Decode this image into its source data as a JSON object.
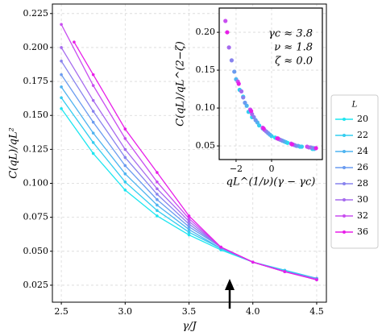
{
  "chart_data": [
    {
      "type": "line",
      "xlabel": "γ/J",
      "ylabel": "C(qL)/qL²",
      "xlim": [
        2.43,
        4.576
      ],
      "ylim": [
        0.0125,
        0.232
      ],
      "xticks": [
        2.5,
        {
          "value": 3.0,
          "label": "3.0"
        },
        3.5,
        {
          "value": 4.0,
          "label": "4.0"
        },
        4.5
      ],
      "yticks": [
        0.025,
        {
          "value": 0.05,
          "label": "0.050"
        },
        0.075,
        {
          "value": 0.1,
          "label": "0.100"
        },
        0.125,
        {
          "value": 0.15,
          "label": "0.150"
        },
        0.175,
        {
          "value": 0.2,
          "label": "0.200"
        },
        0.225
      ],
      "grid": true,
      "legend_title": "L",
      "legend": "right",
      "series": [
        {
          "name": "20",
          "color": "#1ee6f0",
          "x": [
            2.5,
            2.75,
            3.0,
            3.25,
            3.5,
            3.75,
            4.0,
            4.25,
            4.5
          ],
          "values": [
            0.155,
            0.122,
            0.095,
            0.076,
            0.062,
            0.051,
            0.042,
            0.036,
            0.03
          ]
        },
        {
          "name": "22",
          "color": "#34cdf0",
          "x": [
            2.5,
            2.75,
            3.0,
            3.25,
            3.5,
            3.75,
            4.0,
            4.25,
            4.5
          ],
          "values": [
            0.163,
            0.13,
            0.101,
            0.08,
            0.064,
            0.052,
            0.042,
            0.036,
            0.03
          ]
        },
        {
          "name": "24",
          "color": "#4fb3f0",
          "x": [
            2.5,
            2.75,
            3.0,
            3.25,
            3.5,
            3.75,
            4.0,
            4.25,
            4.5
          ],
          "values": [
            0.171,
            0.137,
            0.107,
            0.084,
            0.066,
            0.052,
            0.042,
            0.035,
            0.03
          ]
        },
        {
          "name": "26",
          "color": "#6a9bf0",
          "x": [
            2.5,
            2.75,
            3.0,
            3.25,
            3.5,
            3.75,
            4.0,
            4.25,
            4.5
          ],
          "values": [
            0.18,
            0.145,
            0.113,
            0.088,
            0.068,
            0.053,
            0.042,
            0.035,
            0.03
          ]
        },
        {
          "name": "28",
          "color": "#8883ee",
          "x": [
            2.5,
            2.75,
            3.0,
            3.25,
            3.5,
            3.75,
            4.0,
            4.25,
            4.5
          ],
          "values": [
            0.19,
            0.153,
            0.119,
            0.092,
            0.07,
            0.053,
            0.042,
            0.035,
            0.029
          ]
        },
        {
          "name": "30",
          "color": "#a66aee",
          "x": [
            2.5,
            2.75,
            3.0,
            3.25,
            3.5,
            3.75,
            4.0,
            4.25,
            4.5
          ],
          "values": [
            0.2,
            0.161,
            0.125,
            0.096,
            0.072,
            0.053,
            0.042,
            0.035,
            0.029
          ]
        },
        {
          "name": "32",
          "color": "#c84ef0",
          "x": [
            2.5,
            2.75,
            3.0,
            3.25,
            3.5,
            3.75,
            4.0,
            4.25,
            4.5
          ],
          "values": [
            0.217,
            0.172,
            0.133,
            0.101,
            0.074,
            0.053,
            0.042,
            0.035,
            0.029
          ]
        },
        {
          "name": "36",
          "color": "#e81ee8",
          "x": [
            2.6,
            2.75,
            3.0,
            3.25,
            3.5,
            3.75,
            4.0,
            4.25,
            4.5
          ],
          "values": [
            0.204,
            0.18,
            0.14,
            0.108,
            0.076,
            0.053,
            0.042,
            0.035,
            0.029
          ]
        }
      ]
    },
    {
      "type": "scatter",
      "xlabel": "qL^(1/ν)(γ − γc)",
      "ylabel": "C(qL)/qL^(2−ζ)",
      "xlim": [
        -2.95,
        2.86
      ],
      "ylim": [
        0.032,
        0.232
      ],
      "xticks": [
        {
          "value": -2,
          "label": "−2"
        },
        0
      ],
      "yticks": [
        {
          "value": 0.05,
          "label": "0.05"
        },
        {
          "value": 0.1,
          "label": "0.10"
        },
        {
          "value": 0.15,
          "label": "0.15"
        },
        {
          "value": 0.2,
          "label": "0.20"
        }
      ],
      "grid": true,
      "annotations": [
        "γc ≈ 3.8",
        "ν ≈ 1.8",
        "ζ ≈ 0.0"
      ],
      "series": [
        {
          "color": "#1ee6f0",
          "x": [
            -1.6,
            -1.1,
            -0.5,
            0.2,
            0.9,
            1.6,
            2.3
          ],
          "values": [
            0.115,
            0.088,
            0.073,
            0.061,
            0.054,
            0.049,
            0.046
          ]
        },
        {
          "color": "#34cdf0",
          "x": [
            -1.8,
            -1.3,
            -0.7,
            0.0,
            0.8,
            1.7,
            2.4
          ],
          "values": [
            0.124,
            0.095,
            0.077,
            0.063,
            0.055,
            0.049,
            0.046
          ]
        },
        {
          "color": "#4fb3f0",
          "x": [
            -2.0,
            -1.4,
            -0.8,
            -0.1,
            0.7,
            1.5,
            2.4
          ],
          "values": [
            0.138,
            0.103,
            0.081,
            0.065,
            0.056,
            0.05,
            0.047
          ]
        },
        {
          "color": "#6a9bf0",
          "x": [
            -2.1,
            -1.5,
            -0.9,
            -0.2,
            0.6,
            1.4,
            2.3
          ],
          "values": [
            0.148,
            0.107,
            0.084,
            0.067,
            0.057,
            0.05,
            0.047
          ]
        },
        {
          "color": "#8883ee",
          "x": [
            -2.25,
            -1.6,
            -1.0,
            -0.3,
            0.5,
            1.3,
            2.2
          ],
          "values": [
            0.163,
            0.114,
            0.088,
            0.069,
            0.058,
            0.051,
            0.048
          ]
        },
        {
          "color": "#a66aee",
          "x": [
            -2.4,
            -1.7,
            -1.1,
            -0.4,
            0.4,
            1.2,
            2.1
          ],
          "values": [
            0.18,
            0.122,
            0.092,
            0.071,
            0.059,
            0.052,
            0.048
          ]
        },
        {
          "color": "#c84ef0",
          "x": [
            -2.6,
            -1.9,
            -1.2,
            -0.5,
            0.3,
            1.1,
            2.0
          ],
          "values": [
            0.215,
            0.135,
            0.098,
            0.074,
            0.06,
            0.053,
            0.049
          ]
        },
        {
          "color": "#e81ee8",
          "x": [
            -2.5,
            -1.85,
            -1.15,
            -0.45,
            0.35,
            1.15,
            2.5
          ],
          "values": [
            0.2,
            0.132,
            0.096,
            0.073,
            0.06,
            0.052,
            0.047
          ]
        }
      ]
    }
  ]
}
